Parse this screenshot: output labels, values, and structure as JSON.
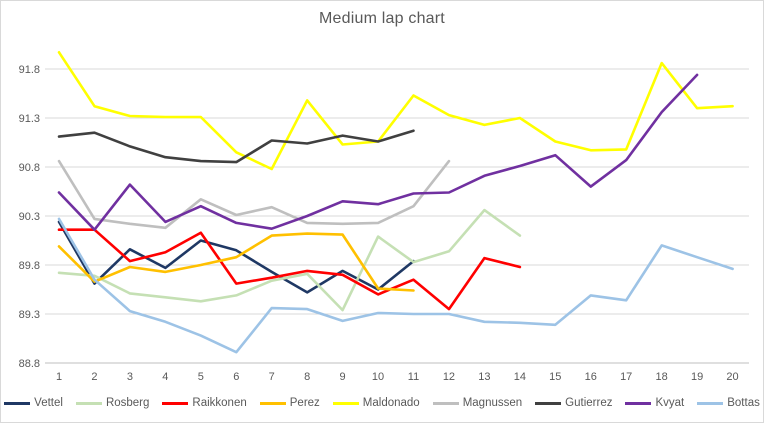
{
  "chart_data": {
    "type": "line",
    "title": "Medium lap chart",
    "xlabel": "",
    "ylabel": "",
    "x": [
      1,
      2,
      3,
      4,
      5,
      6,
      7,
      8,
      9,
      10,
      11,
      12,
      13,
      14,
      15,
      16,
      17,
      18,
      19,
      20
    ],
    "yticks": [
      88.8,
      89.3,
      89.8,
      90.3,
      90.8,
      91.3,
      91.8
    ],
    "ylim": [
      88.8,
      92.1
    ],
    "grid": "horizontal",
    "legend_position": "bottom",
    "text_color": "#595959",
    "grid_color": "#d9d9d9",
    "axis_line_color": "#bfbfbf",
    "series": [
      {
        "name": "Vettel",
        "color": "#1f3864",
        "values": [
          90.24,
          89.61,
          89.96,
          89.77,
          90.05,
          89.95,
          89.73,
          89.52,
          89.74,
          89.55,
          89.84,
          null,
          null,
          null,
          null,
          null,
          null,
          null,
          null,
          null
        ]
      },
      {
        "name": "Rosberg",
        "color": "#c5e0b4",
        "values": [
          89.72,
          89.69,
          89.51,
          89.47,
          89.43,
          89.49,
          89.64,
          89.71,
          89.34,
          90.09,
          89.83,
          89.94,
          90.36,
          90.1,
          null,
          null,
          null,
          null,
          null,
          null
        ]
      },
      {
        "name": "Raikkonen",
        "color": "#ff0000",
        "values": [
          90.16,
          90.16,
          89.84,
          89.93,
          90.13,
          89.61,
          89.67,
          89.74,
          89.7,
          89.5,
          89.65,
          89.35,
          89.87,
          89.78,
          null,
          null,
          null,
          null,
          null,
          null
        ]
      },
      {
        "name": "Perez",
        "color": "#ffc000",
        "values": [
          89.99,
          89.63,
          89.78,
          89.73,
          89.8,
          89.88,
          90.1,
          90.12,
          90.11,
          89.56,
          89.54,
          null,
          null,
          null,
          null,
          null,
          null,
          null,
          null,
          null
        ]
      },
      {
        "name": "Maldonado",
        "color": "#ffff00",
        "values": [
          91.97,
          91.42,
          91.32,
          91.31,
          91.31,
          90.95,
          90.78,
          91.48,
          91.03,
          91.06,
          91.53,
          91.33,
          91.23,
          91.3,
          91.06,
          90.97,
          90.98,
          91.86,
          91.4,
          91.42
        ]
      },
      {
        "name": "Magnussen",
        "color": "#bfbfbf",
        "values": [
          90.86,
          90.27,
          90.22,
          90.18,
          90.47,
          90.31,
          90.39,
          90.23,
          90.22,
          90.23,
          90.4,
          90.86,
          null,
          null,
          null,
          null,
          null,
          null,
          null,
          null
        ]
      },
      {
        "name": "Gutierrez",
        "color": "#404040",
        "values": [
          91.11,
          91.15,
          91.01,
          90.9,
          90.86,
          90.85,
          91.07,
          91.04,
          91.12,
          91.06,
          91.17,
          null,
          null,
          null,
          null,
          null,
          null,
          null,
          null,
          null
        ]
      },
      {
        "name": "Kvyat",
        "color": "#7030a0",
        "values": [
          90.54,
          90.16,
          90.62,
          90.24,
          90.4,
          90.23,
          90.17,
          90.3,
          90.45,
          90.42,
          90.53,
          90.54,
          90.71,
          90.81,
          90.92,
          90.6,
          90.87,
          91.36,
          91.74,
          null
        ]
      },
      {
        "name": "Bottas",
        "color": "#9dc3e6",
        "values": [
          90.27,
          89.65,
          89.33,
          89.22,
          89.08,
          88.91,
          89.36,
          89.35,
          89.23,
          89.31,
          89.3,
          89.3,
          89.22,
          89.21,
          89.19,
          89.49,
          89.44,
          90.0,
          89.88,
          89.76
        ]
      }
    ]
  }
}
